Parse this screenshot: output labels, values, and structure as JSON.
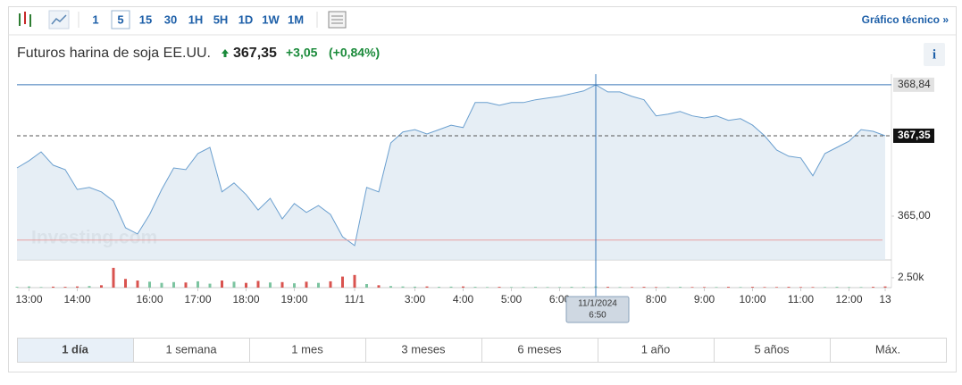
{
  "toolbar": {
    "intervals": [
      "1",
      "5",
      "15",
      "30",
      "1H",
      "5H",
      "1D",
      "1W",
      "1M"
    ],
    "link": "Gráfico técnico »"
  },
  "header": {
    "title": "Futuros harina de soja EE.UU.",
    "price": "367,35",
    "change": "+3,05",
    "change_pct": "(+0,84%)"
  },
  "chart_data": {
    "type": "area",
    "watermark": "Investing.com",
    "color": "#6a9fcf",
    "categories": [
      null,
      "13:00",
      null,
      null,
      null,
      "14:00",
      null,
      null,
      null,
      null,
      null,
      "16:00",
      null,
      null,
      null,
      "17:00",
      null,
      null,
      null,
      "18:00",
      null,
      null,
      null,
      "19:00",
      null,
      null,
      null,
      null,
      "11/1",
      null,
      null,
      null,
      null,
      "3:00",
      null,
      null,
      null,
      "4:00",
      null,
      null,
      null,
      "5:00",
      null,
      null,
      null,
      "6:00",
      null,
      null,
      null,
      null,
      null,
      null,
      null,
      "8:00",
      null,
      null,
      null,
      "9:00",
      null,
      null,
      null,
      "10:00",
      null,
      null,
      null,
      "11:00",
      null,
      null,
      null,
      "12:00",
      null,
      null,
      "13"
    ],
    "values": [
      366.41,
      366.62,
      366.88,
      366.49,
      366.36,
      365.78,
      365.84,
      365.71,
      365.44,
      364.66,
      364.48,
      365.05,
      365.78,
      366.41,
      366.36,
      366.83,
      367.01,
      365.71,
      365.97,
      365.63,
      365.18,
      365.52,
      364.92,
      365.37,
      365.11,
      365.31,
      365.05,
      364.4,
      364.14,
      365.84,
      365.71,
      367.14,
      367.46,
      367.53,
      367.4,
      367.53,
      367.66,
      367.59,
      368.32,
      368.32,
      368.24,
      368.32,
      368.32,
      368.4,
      368.45,
      368.5,
      368.58,
      368.66,
      368.84,
      368.63,
      368.63,
      368.5,
      368.4,
      367.93,
      367.98,
      368.06,
      367.93,
      367.87,
      367.93,
      367.8,
      367.85,
      367.66,
      367.35,
      366.93,
      366.75,
      366.7,
      366.18,
      366.83,
      367.01,
      367.19,
      367.53,
      367.48,
      367.35
    ],
    "ylim": [
      363.72,
      369.15
    ],
    "yticks": [
      {
        "value": 365,
        "label": "365,00"
      }
    ],
    "max_line": {
      "value": 368.84,
      "label": "368,84"
    },
    "last_line": {
      "value": 367.35,
      "label": "367,35"
    },
    "prev_close": 364.3,
    "volume": {
      "values": [
        200,
        300,
        150,
        250,
        200,
        300,
        400,
        600,
        5000,
        2200,
        1800,
        1500,
        1200,
        1400,
        1300,
        1600,
        1000,
        1800,
        1500,
        1200,
        1700,
        1300,
        1400,
        1100,
        1500,
        1200,
        1600,
        2800,
        3200,
        900,
        600,
        400,
        300,
        250,
        300,
        200,
        250,
        300,
        200,
        150,
        200,
        150,
        150,
        200,
        150,
        150,
        200,
        150,
        300,
        200,
        150,
        150,
        200,
        150,
        150,
        200,
        150,
        150,
        150,
        200,
        150,
        200,
        150,
        150,
        200,
        150,
        150,
        150,
        200,
        150,
        150,
        200,
        300
      ],
      "ylim": [
        0,
        7000
      ],
      "yticks": [
        {
          "value": 2500,
          "label": "2.50k"
        }
      ],
      "up_color": "#7cc4a0",
      "down_color": "#d9534f"
    },
    "tooltip": {
      "date": "11/1/2024",
      "time": "6:50"
    }
  },
  "ranges": [
    "1 día",
    "1 semana",
    "1 mes",
    "3 meses",
    "6 meses",
    "1 año",
    "5 años",
    "Máx."
  ]
}
